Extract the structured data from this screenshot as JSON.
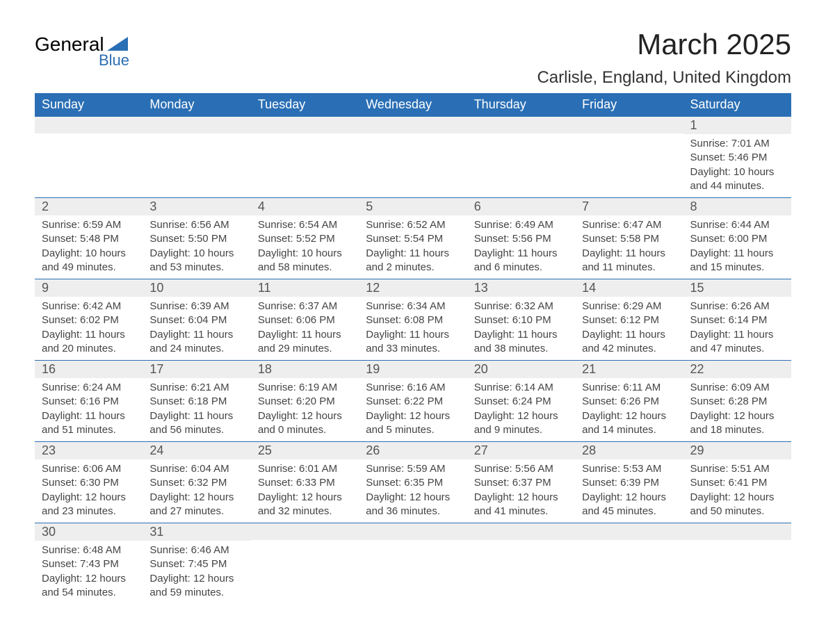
{
  "logo": {
    "word1": "General",
    "word2": "Blue"
  },
  "title": "March 2025",
  "location": "Carlisle, England, United Kingdom",
  "colors": {
    "header_bg": "#2a6fb5",
    "header_text": "#ffffff",
    "daynum_bg": "#eeeeee",
    "daynum_text": "#555555",
    "body_text": "#444444",
    "row_border": "#2a6fb5",
    "logo_accent": "#2a6fb5"
  },
  "typography": {
    "title_fontsize": 42,
    "location_fontsize": 24,
    "header_fontsize": 18,
    "daynum_fontsize": 18,
    "body_fontsize": 15
  },
  "weekdays": [
    "Sunday",
    "Monday",
    "Tuesday",
    "Wednesday",
    "Thursday",
    "Friday",
    "Saturday"
  ],
  "labels": {
    "sunrise": "Sunrise:",
    "sunset": "Sunset:",
    "daylight": "Daylight:"
  },
  "weeks": [
    [
      null,
      null,
      null,
      null,
      null,
      null,
      {
        "n": "1",
        "sunrise": "7:01 AM",
        "sunset": "5:46 PM",
        "daylight": "10 hours and 44 minutes."
      }
    ],
    [
      {
        "n": "2",
        "sunrise": "6:59 AM",
        "sunset": "5:48 PM",
        "daylight": "10 hours and 49 minutes."
      },
      {
        "n": "3",
        "sunrise": "6:56 AM",
        "sunset": "5:50 PM",
        "daylight": "10 hours and 53 minutes."
      },
      {
        "n": "4",
        "sunrise": "6:54 AM",
        "sunset": "5:52 PM",
        "daylight": "10 hours and 58 minutes."
      },
      {
        "n": "5",
        "sunrise": "6:52 AM",
        "sunset": "5:54 PM",
        "daylight": "11 hours and 2 minutes."
      },
      {
        "n": "6",
        "sunrise": "6:49 AM",
        "sunset": "5:56 PM",
        "daylight": "11 hours and 6 minutes."
      },
      {
        "n": "7",
        "sunrise": "6:47 AM",
        "sunset": "5:58 PM",
        "daylight": "11 hours and 11 minutes."
      },
      {
        "n": "8",
        "sunrise": "6:44 AM",
        "sunset": "6:00 PM",
        "daylight": "11 hours and 15 minutes."
      }
    ],
    [
      {
        "n": "9",
        "sunrise": "6:42 AM",
        "sunset": "6:02 PM",
        "daylight": "11 hours and 20 minutes."
      },
      {
        "n": "10",
        "sunrise": "6:39 AM",
        "sunset": "6:04 PM",
        "daylight": "11 hours and 24 minutes."
      },
      {
        "n": "11",
        "sunrise": "6:37 AM",
        "sunset": "6:06 PM",
        "daylight": "11 hours and 29 minutes."
      },
      {
        "n": "12",
        "sunrise": "6:34 AM",
        "sunset": "6:08 PM",
        "daylight": "11 hours and 33 minutes."
      },
      {
        "n": "13",
        "sunrise": "6:32 AM",
        "sunset": "6:10 PM",
        "daylight": "11 hours and 38 minutes."
      },
      {
        "n": "14",
        "sunrise": "6:29 AM",
        "sunset": "6:12 PM",
        "daylight": "11 hours and 42 minutes."
      },
      {
        "n": "15",
        "sunrise": "6:26 AM",
        "sunset": "6:14 PM",
        "daylight": "11 hours and 47 minutes."
      }
    ],
    [
      {
        "n": "16",
        "sunrise": "6:24 AM",
        "sunset": "6:16 PM",
        "daylight": "11 hours and 51 minutes."
      },
      {
        "n": "17",
        "sunrise": "6:21 AM",
        "sunset": "6:18 PM",
        "daylight": "11 hours and 56 minutes."
      },
      {
        "n": "18",
        "sunrise": "6:19 AM",
        "sunset": "6:20 PM",
        "daylight": "12 hours and 0 minutes."
      },
      {
        "n": "19",
        "sunrise": "6:16 AM",
        "sunset": "6:22 PM",
        "daylight": "12 hours and 5 minutes."
      },
      {
        "n": "20",
        "sunrise": "6:14 AM",
        "sunset": "6:24 PM",
        "daylight": "12 hours and 9 minutes."
      },
      {
        "n": "21",
        "sunrise": "6:11 AM",
        "sunset": "6:26 PM",
        "daylight": "12 hours and 14 minutes."
      },
      {
        "n": "22",
        "sunrise": "6:09 AM",
        "sunset": "6:28 PM",
        "daylight": "12 hours and 18 minutes."
      }
    ],
    [
      {
        "n": "23",
        "sunrise": "6:06 AM",
        "sunset": "6:30 PM",
        "daylight": "12 hours and 23 minutes."
      },
      {
        "n": "24",
        "sunrise": "6:04 AM",
        "sunset": "6:32 PM",
        "daylight": "12 hours and 27 minutes."
      },
      {
        "n": "25",
        "sunrise": "6:01 AM",
        "sunset": "6:33 PM",
        "daylight": "12 hours and 32 minutes."
      },
      {
        "n": "26",
        "sunrise": "5:59 AM",
        "sunset": "6:35 PM",
        "daylight": "12 hours and 36 minutes."
      },
      {
        "n": "27",
        "sunrise": "5:56 AM",
        "sunset": "6:37 PM",
        "daylight": "12 hours and 41 minutes."
      },
      {
        "n": "28",
        "sunrise": "5:53 AM",
        "sunset": "6:39 PM",
        "daylight": "12 hours and 45 minutes."
      },
      {
        "n": "29",
        "sunrise": "5:51 AM",
        "sunset": "6:41 PM",
        "daylight": "12 hours and 50 minutes."
      }
    ],
    [
      {
        "n": "30",
        "sunrise": "6:48 AM",
        "sunset": "7:43 PM",
        "daylight": "12 hours and 54 minutes."
      },
      {
        "n": "31",
        "sunrise": "6:46 AM",
        "sunset": "7:45 PM",
        "daylight": "12 hours and 59 minutes."
      },
      null,
      null,
      null,
      null,
      null
    ]
  ]
}
